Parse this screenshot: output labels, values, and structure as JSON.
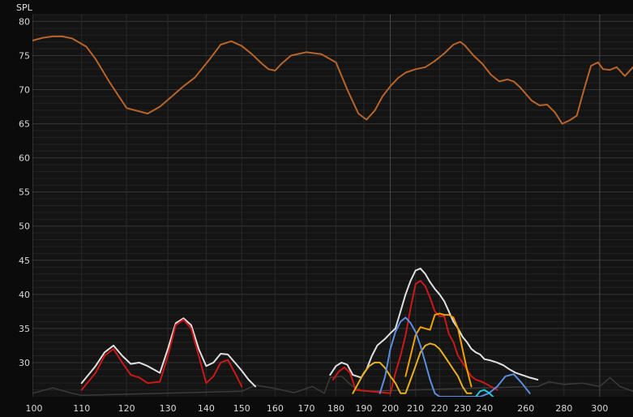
{
  "chart_data": {
    "type": "line",
    "title": "",
    "ylabel": "SPL",
    "xlabel": "",
    "xscale": "log",
    "xlim": [
      100,
      320
    ],
    "ylim": [
      25,
      81
    ],
    "grid": true,
    "background": "#141414",
    "x_ticks": [
      100,
      110,
      120,
      130,
      140,
      150,
      160,
      170,
      180,
      190,
      200,
      210,
      220,
      230,
      240,
      260,
      280,
      300
    ],
    "x_tick_labels": [
      "100",
      "110",
      "120",
      "130",
      "140",
      "150",
      "160",
      "170",
      "180",
      "190",
      "200",
      "210",
      "220",
      "230",
      "240",
      "260",
      "280",
      "300"
    ],
    "y_ticks": [
      30,
      35,
      40,
      45,
      50,
      55,
      60,
      65,
      70,
      75,
      80
    ],
    "y_tick_labels": [
      "30",
      "35",
      "40",
      "45",
      "50",
      "55",
      "60",
      "65",
      "70",
      "75",
      "80"
    ],
    "series": [
      {
        "color": "#b8642a",
        "width": 2,
        "x": [
          100,
          102,
          104,
          106,
          108,
          111,
          113,
          116,
          120,
          125,
          128,
          131,
          134,
          137,
          141,
          144,
          147,
          150,
          153,
          156,
          158,
          160,
          162,
          165,
          170,
          175,
          180,
          184,
          188,
          191,
          194,
          197,
          200,
          203,
          206,
          210,
          214,
          218,
          222,
          226,
          229,
          231,
          235,
          239,
          243,
          247,
          251,
          254,
          257,
          260,
          263,
          267,
          271,
          275,
          279,
          283,
          287,
          291,
          295,
          299,
          302,
          306,
          310,
          315,
          320
        ],
        "y": [
          77.2,
          77.6,
          77.8,
          77.8,
          77.5,
          76.3,
          74.5,
          71.2,
          67.3,
          66.5,
          67.5,
          69.0,
          70.5,
          71.8,
          74.5,
          76.6,
          77.1,
          76.4,
          75.2,
          73.8,
          73.0,
          72.8,
          73.8,
          75.0,
          75.5,
          75.2,
          74.0,
          70.0,
          66.5,
          65.6,
          66.9,
          69.0,
          70.5,
          71.7,
          72.5,
          73.0,
          73.3,
          74.2,
          75.3,
          76.6,
          77.0,
          76.5,
          75.0,
          73.8,
          72.2,
          71.2,
          71.5,
          71.2,
          70.4,
          69.4,
          68.4,
          67.7,
          67.8,
          66.7,
          65.0,
          65.5,
          66.2,
          70.0,
          73.5,
          74.0,
          73.0,
          72.9,
          73.3,
          72.0,
          73.3
        ],
        "note": ""
      },
      {
        "color": "#e0e0e0",
        "width": 2,
        "x": [
          110,
          113,
          115,
          117,
          119,
          121,
          123,
          125,
          128,
          130,
          132,
          134,
          136,
          138,
          140,
          142,
          144,
          146,
          148,
          150,
          152,
          154
        ],
        "y": [
          27,
          29.5,
          31.5,
          32.5,
          31,
          29.8,
          30,
          29.5,
          28.5,
          32,
          35.8,
          36.5,
          35.5,
          32,
          29.5,
          30,
          31.3,
          31.2,
          30,
          28.8,
          27.5,
          26.5
        ]
      },
      {
        "color": "#cc1818",
        "width": 2,
        "x": [
          110,
          113,
          115,
          117,
          119,
          121,
          123,
          125,
          128,
          130,
          132,
          134,
          136,
          138,
          140,
          142,
          144,
          146,
          148,
          150
        ],
        "y": [
          26,
          28.5,
          31,
          32,
          30,
          28.2,
          27.8,
          27,
          27.2,
          31,
          35.5,
          36.3,
          35,
          31,
          27,
          28,
          30,
          30.4,
          28.5,
          26.5
        ]
      },
      {
        "color": "#e0e0e0",
        "width": 2,
        "x": [
          178,
          180,
          182,
          184,
          186,
          189,
          191,
          193,
          195,
          198,
          200,
          202,
          204,
          206,
          208,
          210,
          212,
          214,
          216,
          218,
          220,
          222,
          224,
          226,
          228,
          230,
          232,
          234,
          236,
          238,
          240,
          243,
          246,
          249,
          252,
          255,
          258,
          262,
          266
        ],
        "y": [
          28.2,
          29.5,
          30,
          29.7,
          28.2,
          27.8,
          29,
          31,
          32.5,
          33.5,
          34.3,
          35,
          37.5,
          40,
          42,
          43.5,
          43.8,
          43,
          41.8,
          40.8,
          40,
          39,
          37.5,
          36,
          35,
          33.8,
          33,
          32,
          31.5,
          31.2,
          30.5,
          30.3,
          30,
          29.6,
          29,
          28.5,
          28.2,
          27.8,
          27.5
        ]
      },
      {
        "color": "#cc1818",
        "width": 2,
        "x": [
          179,
          181,
          183,
          185,
          187,
          200,
          202,
          204,
          206,
          208,
          210,
          212,
          214,
          216,
          218,
          220,
          222,
          224,
          226,
          228,
          230,
          232,
          234,
          236,
          238,
          240,
          243,
          246
        ],
        "y": [
          27.5,
          28.7,
          29.3,
          28.5,
          26,
          25.5,
          28.5,
          31,
          34,
          38,
          41.5,
          42,
          41.2,
          39.5,
          37.5,
          36.8,
          36.8,
          34.2,
          33,
          31,
          30,
          29,
          28,
          27.5,
          27.3,
          27,
          26.5,
          26
        ]
      },
      {
        "color": "#e8b020",
        "width": 2,
        "x": [
          186,
          188,
          190,
          192,
          194,
          196,
          198,
          200,
          202,
          204,
          206,
          208,
          210,
          212,
          214,
          216,
          218,
          220,
          222,
          224,
          226,
          228,
          230,
          232,
          234
        ],
        "y": [
          25.5,
          27,
          28.5,
          29.5,
          30,
          30,
          29.2,
          28,
          27,
          25.5,
          25.5,
          27.5,
          29.5,
          31.5,
          32.5,
          32.8,
          32.6,
          32,
          31,
          30,
          29,
          28,
          26.5,
          25.5,
          25.5
        ]
      },
      {
        "color": "#f0a000",
        "width": 2,
        "x": [
          206,
          208,
          210,
          212,
          214,
          216,
          218,
          220,
          222,
          224,
          226,
          228,
          230,
          232,
          234
        ],
        "y": [
          28,
          31,
          34,
          35.2,
          35,
          34.8,
          37,
          37.2,
          37,
          37,
          36.6,
          35,
          32,
          29,
          26.5
        ]
      },
      {
        "color": "#5b8ee0",
        "width": 2,
        "x": [
          196,
          198,
          200,
          202,
          204,
          206,
          208,
          210,
          212,
          214,
          216,
          218,
          220,
          230,
          234,
          238,
          242,
          246,
          250,
          254,
          258,
          262
        ],
        "y": [
          25.5,
          28,
          32,
          34.5,
          36,
          36.6,
          35.8,
          34.5,
          32.5,
          30,
          27.5,
          25.5,
          25,
          25,
          25,
          25,
          25.5,
          26.5,
          28,
          28.3,
          27,
          25.5
        ]
      },
      {
        "color": "#20c8d8",
        "width": 2,
        "x": [
          236,
          238,
          240,
          242,
          244
        ],
        "y": [
          25,
          25.8,
          26,
          25.6,
          25
        ]
      },
      {
        "color": "#3a3a3a",
        "width": 1.5,
        "x": [
          100,
          104,
          108,
          110,
          150,
          154,
          160,
          166,
          172,
          176,
          178,
          182,
          186,
          190,
          266,
          272,
          280,
          290,
          300,
          306,
          312,
          320
        ],
        "y": [
          25.5,
          26.3,
          25.5,
          25.2,
          25.8,
          26.7,
          26.2,
          25.6,
          26.5,
          25.5,
          27.8,
          28,
          26.5,
          25.8,
          26.5,
          27.2,
          26.8,
          27,
          26.5,
          27.8,
          26.5,
          25.8
        ]
      }
    ]
  }
}
